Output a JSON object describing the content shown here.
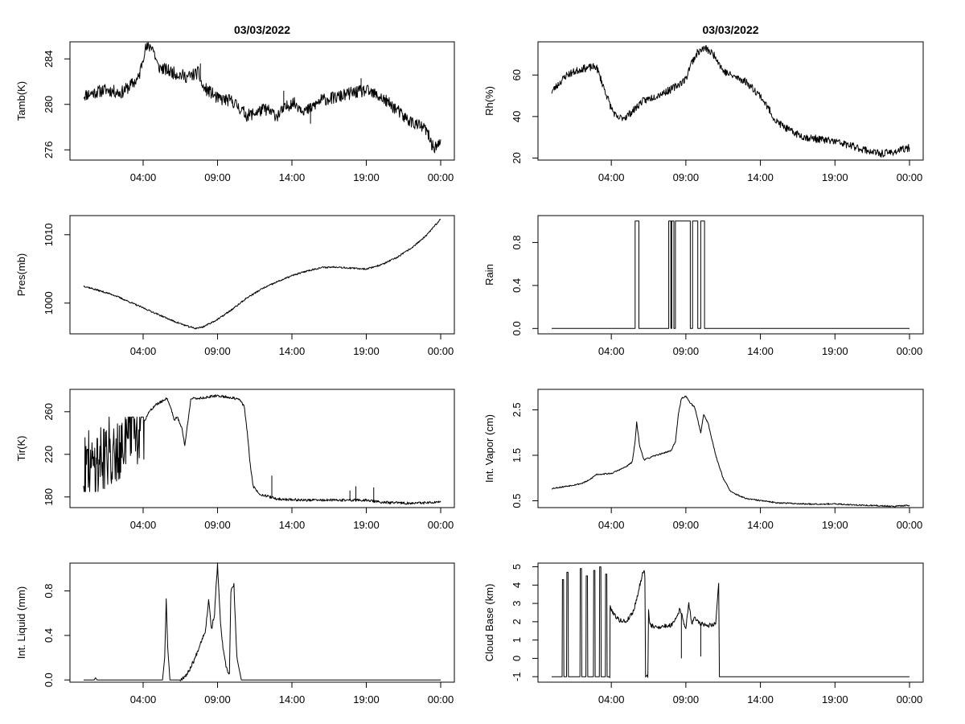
{
  "colors": {
    "background": "#ffffff",
    "ink": "#000000"
  },
  "chart_data": [
    {
      "id": "tamb",
      "type": "line",
      "title": "03/03/2022",
      "ylabel": "Tamb(K)",
      "ylim": [
        275.1,
        285.5
      ],
      "yticks": [
        276,
        280,
        284
      ],
      "noise": 0.55,
      "seed": 11,
      "xticks": [
        "04:00",
        "09:00",
        "14:00",
        "19:00",
        "00:00"
      ],
      "x": [
        0,
        1.5,
        2.5,
        3,
        3.7,
        4.1,
        4.6,
        5,
        6,
        7,
        7.7,
        8,
        8.6,
        9,
        10,
        11,
        12.2,
        13,
        14,
        15,
        16,
        17,
        18,
        19,
        20,
        21,
        21.5,
        22,
        23,
        23.5,
        24
      ],
      "values": [
        280.8,
        281.3,
        281.0,
        281.5,
        282.3,
        284.8,
        285.2,
        283.3,
        282.8,
        282.4,
        282.8,
        281.5,
        281.0,
        280.5,
        280.3,
        279.0,
        279.6,
        279.0,
        280.2,
        279.4,
        280.4,
        280.6,
        281.0,
        281.2,
        280.6,
        279.6,
        278.9,
        278.5,
        277.8,
        276.2,
        276.5
      ],
      "spikes": [
        [
          3.75,
          282.8
        ],
        [
          7.85,
          283.6
        ],
        [
          13.45,
          281.2
        ],
        [
          15.25,
          278.3
        ],
        [
          18.65,
          282.3
        ]
      ]
    },
    {
      "id": "rh",
      "type": "line",
      "title": "03/03/2022",
      "ylabel": "Rh(%)",
      "ylim": [
        19,
        76
      ],
      "yticks": [
        20,
        40,
        60
      ],
      "noise": 1.8,
      "seed": 23,
      "xticks": [
        "04:00",
        "09:00",
        "14:00",
        "19:00",
        "00:00"
      ],
      "x": [
        0,
        1,
        2,
        3,
        3.2,
        3.7,
        4,
        4.4,
        5,
        5.5,
        6,
        7,
        8,
        9,
        9.3,
        9.8,
        10.3,
        11,
        11.5,
        12,
        13,
        14,
        14.7,
        15,
        16,
        17,
        18,
        19,
        20,
        21,
        21.5,
        22,
        23,
        24
      ],
      "values": [
        52,
        60,
        63,
        64,
        60,
        50,
        44,
        39,
        40,
        43,
        47,
        50,
        53,
        58,
        65,
        71,
        73,
        69,
        62,
        60,
        57,
        50,
        42,
        38,
        33,
        30,
        29,
        28,
        26,
        24,
        23,
        22,
        23,
        25
      ]
    },
    {
      "id": "pres",
      "type": "line",
      "title": "",
      "ylabel": "Pres(mb)",
      "ylim": [
        995.5,
        1012.8
      ],
      "yticks": [
        1000,
        1010
      ],
      "noise": 0.12,
      "seed": 37,
      "xticks": [
        "04:00",
        "09:00",
        "14:00",
        "19:00",
        "00:00"
      ],
      "x": [
        0,
        2,
        4,
        6,
        7,
        7.5,
        8,
        9,
        10,
        11,
        12,
        13,
        14,
        15,
        16,
        17,
        18,
        19,
        20,
        21,
        22,
        23,
        24
      ],
      "values": [
        1002.5,
        1001.2,
        999.3,
        997.4,
        996.6,
        996.3,
        996.5,
        997.6,
        999.1,
        1000.8,
        1002.1,
        1003.1,
        1004.0,
        1004.7,
        1005.2,
        1005.3,
        1005.1,
        1005.0,
        1005.6,
        1006.6,
        1008.0,
        1009.8,
        1012.3
      ]
    },
    {
      "id": "rain",
      "type": "step",
      "title": "",
      "ylabel": "Rain",
      "ylim": [
        -0.05,
        1.05
      ],
      "yticks": [
        0.0,
        0.4,
        0.8
      ],
      "ytickLabels": [
        "0.0",
        "0.4",
        "0.8"
      ],
      "noise": 0,
      "xticks": [
        "04:00",
        "09:00",
        "14:00",
        "19:00",
        "00:00"
      ],
      "x": [
        0,
        5.6,
        5.6,
        5.85,
        5.85,
        7.85,
        7.85,
        8.0,
        8.0,
        8.05,
        8.05,
        8.2,
        8.2,
        8.3,
        8.3,
        9.3,
        9.3,
        9.45,
        9.45,
        9.8,
        9.8,
        10.0,
        10.0,
        10.25,
        10.25,
        24
      ],
      "values": [
        0,
        0,
        1,
        1,
        0,
        0,
        1,
        1,
        0,
        0,
        1,
        1,
        0,
        0,
        1,
        1,
        0,
        0,
        1,
        1,
        0,
        0,
        1,
        1,
        0,
        0
      ]
    },
    {
      "id": "tir",
      "type": "line",
      "title": "",
      "ylabel": "Tir(K)",
      "ylim": [
        170,
        281
      ],
      "yticks": [
        180,
        220,
        260
      ],
      "noise": 1.2,
      "seed": 41,
      "xticks": [
        "04:00",
        "09:00",
        "14:00",
        "19:00",
        "00:00"
      ],
      "x": [
        0,
        4,
        4.3,
        4.8,
        5.3,
        5.6,
        5.9,
        6.1,
        6.3,
        6.6,
        6.8,
        7.2,
        8,
        9,
        10,
        10.5,
        10.8,
        11.0,
        11.2,
        11.4,
        11.8,
        12.5,
        13,
        15,
        17,
        19,
        20,
        22,
        24
      ],
      "values": [
        205,
        248,
        258,
        266,
        270,
        273,
        262,
        252,
        255,
        245,
        228,
        272,
        273,
        275,
        273,
        271,
        265,
        240,
        210,
        190,
        183,
        180,
        178,
        177,
        177,
        177,
        175,
        174,
        175
      ],
      "bursts": [
        {
          "x0": 0,
          "x1": 4.05,
          "lo": 185,
          "hi": 255,
          "n": 130
        }
      ],
      "spikes": [
        [
          12.65,
          200
        ],
        [
          17.9,
          186
        ],
        [
          18.3,
          190
        ],
        [
          19.5,
          189
        ]
      ]
    },
    {
      "id": "vapor",
      "type": "line",
      "title": "",
      "ylabel": "Int. Vapor (cm)",
      "ylim": [
        0.35,
        2.95
      ],
      "yticks": [
        0.5,
        1.5,
        2.5
      ],
      "ytickLabels": [
        "0.5",
        "1.5",
        "2.5"
      ],
      "noise": 0.015,
      "seed": 53,
      "xticks": [
        "04:00",
        "09:00",
        "14:00",
        "19:00",
        "00:00"
      ],
      "x": [
        0,
        1,
        2,
        2.5,
        3,
        4,
        5,
        5.4,
        5.6,
        5.7,
        5.9,
        6.2,
        7,
        8,
        8.3,
        8.5,
        8.7,
        9,
        9.3,
        9.6,
        10,
        10.2,
        10.5,
        11,
        11.5,
        12,
        13,
        15,
        17,
        19,
        21,
        23,
        24
      ],
      "values": [
        0.77,
        0.82,
        0.88,
        0.95,
        1.08,
        1.1,
        1.25,
        1.35,
        1.8,
        2.25,
        1.7,
        1.4,
        1.5,
        1.6,
        1.8,
        2.4,
        2.75,
        2.8,
        2.65,
        2.55,
        2.0,
        2.4,
        2.2,
        1.5,
        1.0,
        0.7,
        0.55,
        0.46,
        0.43,
        0.43,
        0.4,
        0.38,
        0.4
      ]
    },
    {
      "id": "liquid",
      "type": "line",
      "title": "",
      "ylabel": "Int. Liquid (mm)",
      "ylim": [
        -0.02,
        1.05
      ],
      "yticks": [
        0.0,
        0.4,
        0.8
      ],
      "ytickLabels": [
        "0.0",
        "0.4",
        "0.8"
      ],
      "noise": 0.018,
      "seed": 67,
      "noiseMask": [
        [
          6.5,
          10.3
        ]
      ],
      "xticks": [
        "04:00",
        "09:00",
        "14:00",
        "19:00",
        "00:00"
      ],
      "x": [
        0,
        0.7,
        0.8,
        0.9,
        5.3,
        5.45,
        5.55,
        5.65,
        5.8,
        6.5,
        7,
        7.5,
        7.9,
        8.2,
        8.4,
        8.6,
        8.8,
        9.0,
        9.2,
        9.4,
        9.6,
        9.8,
        9.9,
        10.1,
        10.3,
        10.6,
        24
      ],
      "values": [
        0,
        0,
        0.02,
        0,
        0,
        0.2,
        0.73,
        0.3,
        0,
        0,
        0.06,
        0.2,
        0.35,
        0.45,
        0.73,
        0.45,
        0.6,
        1.04,
        0.5,
        0.25,
        0.1,
        0.05,
        0.8,
        0.85,
        0.2,
        0,
        0
      ]
    },
    {
      "id": "cloud",
      "type": "line",
      "title": "",
      "ylabel": "Cloud Base (km)",
      "ylim": [
        -1.3,
        5.2
      ],
      "yticks": [
        -1,
        0,
        1,
        2,
        3,
        4,
        5
      ],
      "noise": 0.12,
      "seed": 79,
      "noiseMask": [
        [
          3.9,
          11.0
        ]
      ],
      "xticks": [
        "04:00",
        "09:00",
        "14:00",
        "19:00",
        "00:00"
      ],
      "x": [
        0,
        0.7,
        0.72,
        0.8,
        0.82,
        1.0,
        1.02,
        1.1,
        1.12,
        1.9,
        1.92,
        2.0,
        2.02,
        2.3,
        2.32,
        2.4,
        2.42,
        2.8,
        2.82,
        2.9,
        2.92,
        3.2,
        3.22,
        3.3,
        3.32,
        3.6,
        3.62,
        3.7,
        3.72,
        3.9,
        3.92,
        4.2,
        4.5,
        5,
        5.5,
        5.8,
        6.0,
        6.2,
        6.25,
        6.3,
        6.45,
        6.5,
        6.6,
        7,
        8,
        8.4,
        8.6,
        9,
        9.2,
        9.4,
        9.6,
        10,
        10.5,
        11,
        11.1,
        11.2,
        11.25,
        24
      ],
      "values": [
        -1,
        -1,
        4.3,
        4.3,
        -1,
        -1,
        4.7,
        4.7,
        -1,
        -1,
        4.9,
        4.9,
        -1,
        -1,
        4.5,
        4.5,
        -1,
        -1,
        4.8,
        4.8,
        -1,
        -1,
        5.0,
        5.0,
        -1,
        -1,
        4.6,
        4.6,
        -1,
        -1,
        2.8,
        2.4,
        2.1,
        2.0,
        2.6,
        3.6,
        4.3,
        4.9,
        4.5,
        -1,
        -1,
        2.6,
        1.8,
        1.7,
        1.8,
        2.3,
        2.7,
        1.6,
        3.0,
        1.9,
        2.2,
        1.9,
        1.8,
        1.9,
        3.0,
        4.1,
        -1,
        -1
      ],
      "spikes": [
        [
          8.7,
          0.0
        ],
        [
          10.0,
          0.1
        ]
      ]
    }
  ]
}
